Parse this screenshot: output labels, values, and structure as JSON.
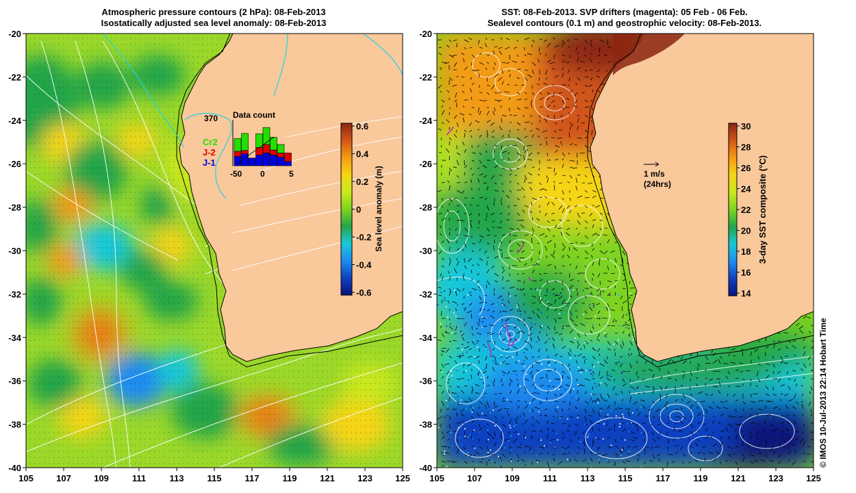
{
  "left_panel": {
    "title_line1": "Atmospheric pressure contours (2 hPa): 08-Feb-2013",
    "title_line2": "Isostatically adjusted sea level anomaly: 08-Feb-2013",
    "colorbar_label": "Sea level anomaly (m)",
    "colorbar_ticks": [
      "0.6",
      "0.4",
      "0.2",
      "0",
      "-0.2",
      "-0.4",
      "-0.6"
    ],
    "colormap": [
      "#08147a",
      "#1040c0",
      "#1e8cf0",
      "#19c8d8",
      "#23a54a",
      "#7ed321",
      "#c9e81f",
      "#f5d516",
      "#f39b12",
      "#d2561a",
      "#8c2612"
    ]
  },
  "histogram": {
    "title": "Data count",
    "max_label": "370",
    "x_ticks": [
      "-5",
      "0",
      "5"
    ],
    "x_tick_extra": "-50",
    "legend": [
      {
        "name": "Cr2",
        "color": "#22e000"
      },
      {
        "name": "J-2",
        "color": "#e00000"
      },
      {
        "name": "J-1",
        "color": "#0000e0"
      }
    ],
    "bars": [
      {
        "j1": 0.22,
        "j2": 0.12,
        "cr2": 0.3
      },
      {
        "j1": 0.28,
        "j2": 0.08,
        "cr2": 0.4
      },
      {
        "j1": 0.18,
        "j2": 0.0,
        "cr2": 0.0
      },
      {
        "j1": 0.25,
        "j2": 0.18,
        "cr2": 0.32
      },
      {
        "j1": 0.3,
        "j2": 0.2,
        "cr2": 0.4
      },
      {
        "j1": 0.25,
        "j2": 0.12,
        "cr2": 0.3
      },
      {
        "j1": 0.2,
        "j2": 0.1,
        "cr2": 0.2
      },
      {
        "j1": 0.1,
        "j2": 0.2,
        "cr2": 0.0
      }
    ]
  },
  "right_panel": {
    "title_line1": "SST: 08-Feb-2013. SVP drifters (magenta): 05 Feb - 06 Feb.",
    "title_line2": "Sealevel contours (0.1 m) and geostrophic velocity: 08-Feb-2013.",
    "colorbar_label": "3-day SST composite (°C)",
    "colorbar_ticks": [
      "30",
      "28",
      "26",
      "24",
      "22",
      "20",
      "18",
      "16",
      "14"
    ],
    "scale_arrow_label": "1 m/s",
    "scale_arrow_sublabel": "(24hrs)",
    "colormap": [
      "#08147a",
      "#1040c0",
      "#1e8cf0",
      "#19c8d8",
      "#23a54a",
      "#7ed321",
      "#c9e81f",
      "#f5d516",
      "#f39b12",
      "#d2561a",
      "#8c2612"
    ]
  },
  "axes": {
    "x_ticks": [
      "105",
      "107",
      "109",
      "111",
      "113",
      "115",
      "117",
      "119",
      "121",
      "123",
      "125"
    ],
    "y_ticks": [
      "-20",
      "-22",
      "-24",
      "-26",
      "-28",
      "-30",
      "-32",
      "-34",
      "-36",
      "-38",
      "-40"
    ]
  },
  "credit": "© IMOS 10-Jul-2013 22:14 Hobart Time",
  "colors": {
    "land": "#f9c89b",
    "coast": "#000000",
    "isobath": "#22d3e6",
    "contour": "#ffffff",
    "drifter": "#c21dc2"
  }
}
